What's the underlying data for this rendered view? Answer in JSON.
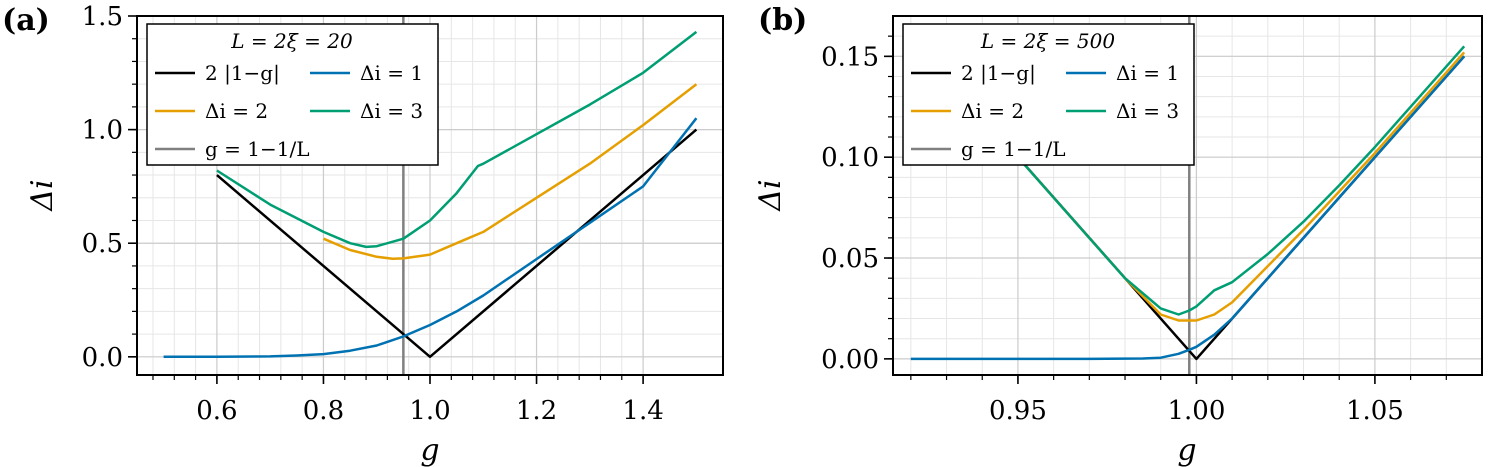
{
  "chart_data": [
    {
      "type": "line",
      "panel_label": "(a)",
      "xlabel": "g",
      "ylabel": "Δi",
      "xlim": [
        0.45,
        1.55
      ],
      "ylim": [
        -0.08,
        1.5
      ],
      "x_ticks": [
        0.6,
        0.8,
        1.0,
        1.2,
        1.4
      ],
      "x_tick_labels": [
        "0.6",
        "0.8",
        "1.0",
        "1.2",
        "1.4"
      ],
      "y_ticks": [
        0.0,
        0.5,
        1.0,
        1.5
      ],
      "y_tick_labels": [
        "0.0",
        "0.5",
        "1.0",
        "1.5"
      ],
      "grid": true,
      "legend_title": "L = 2ξ = 20",
      "legend_position": "top-left",
      "vline": {
        "x": 0.95,
        "name": "g = 1−1/L"
      },
      "series": [
        {
          "name": "2 |1−g|",
          "color": "#000000",
          "x": [
            0.6,
            1.0,
            1.5
          ],
          "y": [
            0.8,
            0.0,
            1.0
          ]
        },
        {
          "name": "Δi = 1",
          "color": "#0072b2",
          "x": [
            0.5,
            0.6,
            0.7,
            0.75,
            0.8,
            0.85,
            0.9,
            0.95,
            1.0,
            1.05,
            1.1,
            1.2,
            1.3,
            1.4,
            1.5
          ],
          "y": [
            0.0,
            0.0,
            0.002,
            0.006,
            0.012,
            0.027,
            0.05,
            0.09,
            0.14,
            0.2,
            0.27,
            0.43,
            0.59,
            0.75,
            1.05
          ]
        },
        {
          "name": "Δi = 2",
          "color": "#e69f00",
          "x": [
            0.8,
            0.85,
            0.9,
            0.93,
            0.95,
            1.0,
            1.05,
            1.1,
            1.2,
            1.3,
            1.4,
            1.5
          ],
          "y": [
            0.52,
            0.47,
            0.44,
            0.432,
            0.433,
            0.45,
            0.5,
            0.55,
            0.7,
            0.85,
            1.02,
            1.2
          ]
        },
        {
          "name": "Δi = 3",
          "color": "#009e73",
          "x": [
            0.6,
            0.7,
            0.8,
            0.85,
            0.88,
            0.9,
            0.95,
            1.0,
            1.05,
            1.09,
            1.1,
            1.2,
            1.3,
            1.4,
            1.5
          ],
          "y": [
            0.82,
            0.67,
            0.55,
            0.5,
            0.484,
            0.487,
            0.52,
            0.6,
            0.72,
            0.84,
            0.85,
            0.98,
            1.11,
            1.25,
            1.43
          ]
        }
      ]
    },
    {
      "type": "line",
      "panel_label": "(b)",
      "xlabel": "g",
      "ylabel": "Δi",
      "xlim": [
        0.915,
        1.08
      ],
      "ylim": [
        -0.008,
        0.17
      ],
      "x_ticks": [
        0.95,
        1.0,
        1.05
      ],
      "x_tick_labels": [
        "0.95",
        "1.00",
        "1.05"
      ],
      "y_ticks": [
        0.0,
        0.05,
        0.1,
        0.15
      ],
      "y_tick_labels": [
        "0.00",
        "0.05",
        "0.10",
        "0.15"
      ],
      "grid": true,
      "legend_title": "L = 2ξ = 500",
      "legend_position": "top-left",
      "vline": {
        "x": 0.998,
        "name": "g = 1−1/L"
      },
      "series": [
        {
          "name": "2 |1−g|",
          "color": "#000000",
          "x": [
            0.946,
            1.0,
            1.075
          ],
          "y": [
            0.108,
            0.0,
            0.15
          ]
        },
        {
          "name": "Δi = 1",
          "color": "#0072b2",
          "x": [
            0.92,
            0.97,
            0.985,
            0.99,
            0.995,
            0.998,
            1.0,
            1.005,
            1.01,
            1.02,
            1.03,
            1.04,
            1.05,
            1.06,
            1.075
          ],
          "y": [
            0.0,
            0.0,
            0.0002,
            0.0006,
            0.0025,
            0.0045,
            0.006,
            0.012,
            0.02,
            0.04,
            0.06,
            0.08,
            0.1,
            0.12,
            0.15
          ]
        },
        {
          "name": "Δi = 2",
          "color": "#e69f00",
          "x": [
            0.95,
            0.97,
            0.98,
            0.99,
            0.995,
            0.998,
            1.0,
            1.005,
            1.01,
            1.02,
            1.03,
            1.04,
            1.05,
            1.06,
            1.075
          ],
          "y": [
            0.1,
            0.06,
            0.04,
            0.022,
            0.019,
            0.019,
            0.019,
            0.022,
            0.028,
            0.046,
            0.064,
            0.083,
            0.102,
            0.122,
            0.152
          ]
        },
        {
          "name": "Δi = 3",
          "color": "#009e73",
          "x": [
            0.95,
            0.97,
            0.98,
            0.99,
            0.995,
            0.998,
            1.0,
            1.005,
            1.01,
            1.02,
            1.03,
            1.04,
            1.05,
            1.06,
            1.075
          ],
          "y": [
            0.1,
            0.06,
            0.04,
            0.025,
            0.022,
            0.024,
            0.026,
            0.034,
            0.038,
            0.052,
            0.068,
            0.086,
            0.105,
            0.125,
            0.155
          ]
        }
      ]
    }
  ]
}
